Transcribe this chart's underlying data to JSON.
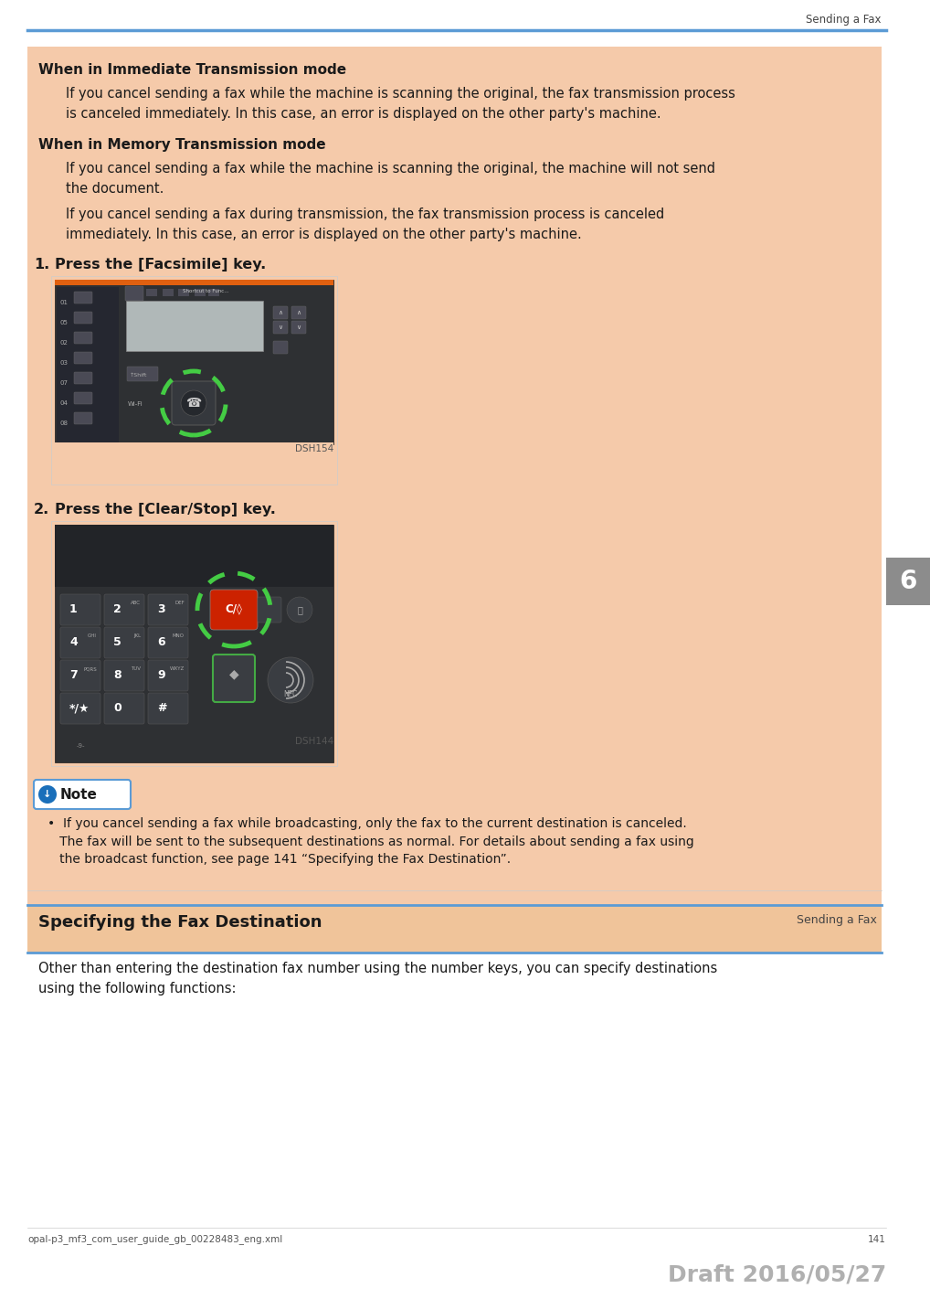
{
  "page_width": 10.18,
  "page_height": 14.21,
  "bg_color": "#ffffff",
  "header_text": "Sending a Fax",
  "header_line_color": "#5b9bd5",
  "content_bg_color": "#f5caaa",
  "bold_heading1": "When in Immediate Transmission mode",
  "para1": "If you cancel sending a fax while the machine is scanning the original, the fax transmission process\nis canceled immediately. In this case, an error is displayed on the other party's machine.",
  "bold_heading2": "When in Memory Transmission mode",
  "para2a": "If you cancel sending a fax while the machine is scanning the original, the machine will not send\nthe document.",
  "para2b": "If you cancel sending a fax during transmission, the fax transmission process is canceled\nimmediately. In this case, an error is displayed on the other party's machine.",
  "step1": "Press the [Facsimile] key.",
  "step2": "Press the [Clear/Stop] key.",
  "image_label1": "DSH154",
  "image_label2": "DSH144",
  "note_title": "Note",
  "note_icon_color": "#1a6fba",
  "note_border_color": "#5b9bd5",
  "note_text": "•  If you cancel sending a fax while broadcasting, only the fax to the current destination is canceled.\n   The fax will be sent to the subsequent destinations as normal. For details about sending a fax using\n   the broadcast function, see page 141 “Specifying the Fax Destination”.",
  "section_title": "Specifying the Fax Destination",
  "section_line_color": "#5b9bd5",
  "section_para": "Other than entering the destination fax number using the number keys, you can specify destinations\nusing the following functions:",
  "footer_left": "opal-p3_mf3_com_user_guide_gb_00228483_eng.xml",
  "footer_page": "141",
  "footer_draft": "Draft 2016/05/27",
  "sidebar_number": "6",
  "sidebar_bg": "#8c8c8c"
}
